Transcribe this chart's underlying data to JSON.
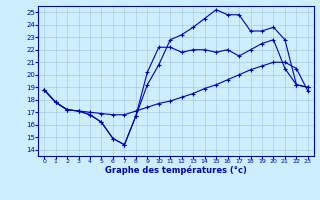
{
  "background_color": "#cceeff",
  "grid_color": "#aaccdd",
  "line_color": "#0000bb",
  "xlabel": "Graphe des températures (°c)",
  "xlim": [
    -0.5,
    23.5
  ],
  "ylim": [
    13.5,
    25.5
  ],
  "yticks": [
    14,
    15,
    16,
    17,
    18,
    19,
    20,
    21,
    22,
    23,
    24,
    25
  ],
  "xticks": [
    0,
    1,
    2,
    3,
    4,
    5,
    6,
    7,
    8,
    9,
    10,
    11,
    12,
    13,
    14,
    15,
    16,
    17,
    18,
    19,
    20,
    21,
    22,
    23
  ],
  "series": [
    {
      "x": [
        0,
        1,
        2,
        3,
        4,
        5,
        6,
        7,
        8,
        9,
        10,
        11,
        12,
        13,
        14,
        15,
        16,
        17,
        18,
        19,
        20,
        21,
        22,
        23
      ],
      "y": [
        18.8,
        17.8,
        17.2,
        17.1,
        16.8,
        16.2,
        14.9,
        14.4,
        16.7,
        20.2,
        22.2,
        22.2,
        21.8,
        22.0,
        22.0,
        21.8,
        22.0,
        21.5,
        22.0,
        22.5,
        22.8,
        20.5,
        19.2,
        19.0
      ]
    },
    {
      "x": [
        0,
        1,
        2,
        3,
        4,
        5,
        6,
        7,
        8,
        9,
        10,
        11,
        12,
        13,
        14,
        15,
        16,
        17,
        18,
        19,
        20,
        21,
        22,
        23
      ],
      "y": [
        18.8,
        17.8,
        17.2,
        17.1,
        17.0,
        16.9,
        16.8,
        16.8,
        17.1,
        17.4,
        17.7,
        17.9,
        18.2,
        18.5,
        18.9,
        19.2,
        19.6,
        20.0,
        20.4,
        20.7,
        21.0,
        21.0,
        20.5,
        18.7
      ]
    },
    {
      "x": [
        0,
        1,
        2,
        3,
        4,
        5,
        6,
        7,
        8,
        9,
        10,
        11,
        12,
        13,
        14,
        15,
        16,
        17,
        18,
        19,
        20,
        21,
        22,
        23
      ],
      "y": [
        18.8,
        17.8,
        17.2,
        17.1,
        16.8,
        16.2,
        14.9,
        14.4,
        16.7,
        19.2,
        20.8,
        22.8,
        23.2,
        23.8,
        24.5,
        25.2,
        24.8,
        24.8,
        23.5,
        23.5,
        23.8,
        22.8,
        19.2,
        19.0
      ]
    }
  ]
}
